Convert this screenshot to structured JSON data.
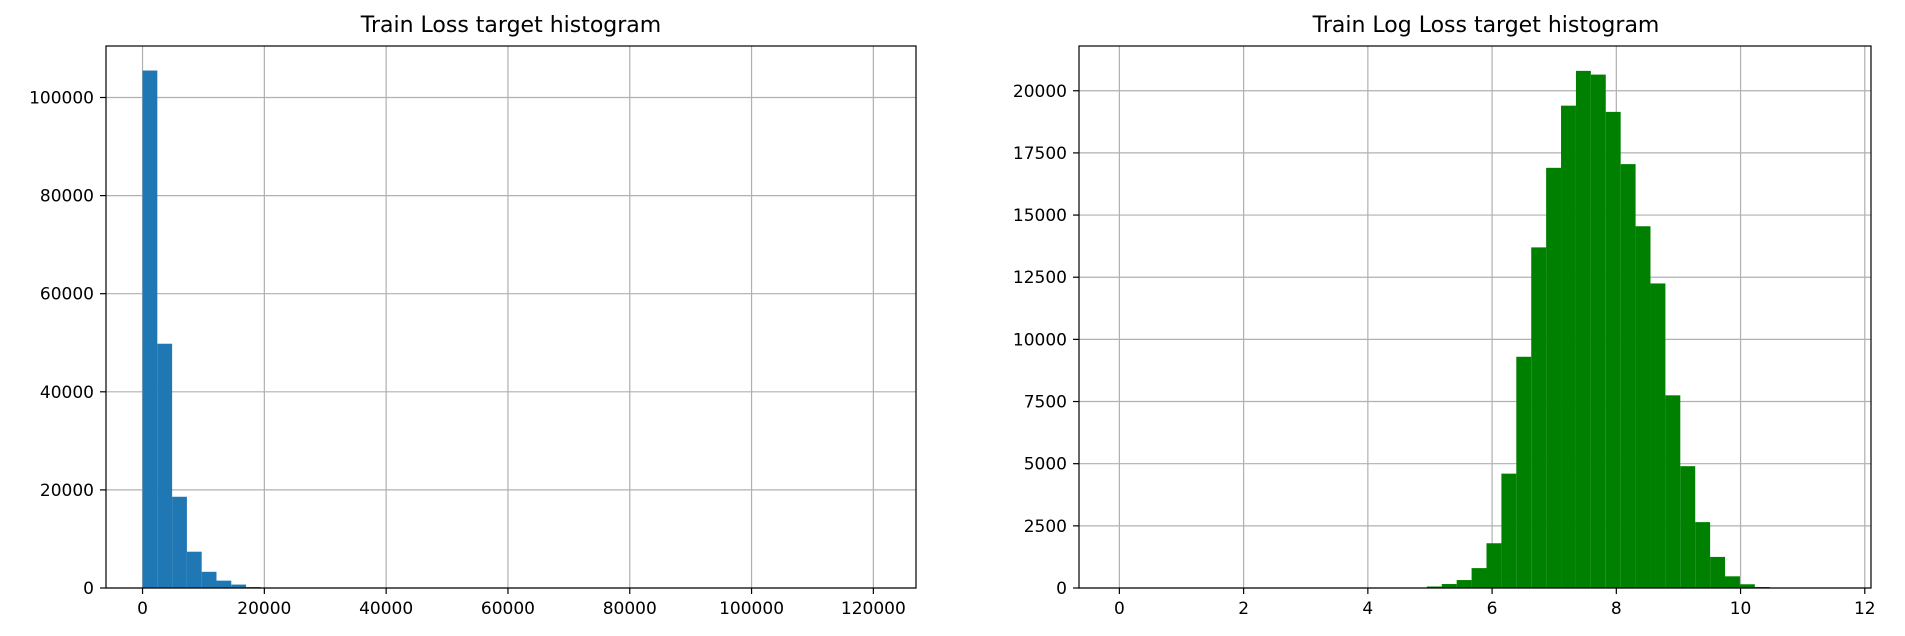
{
  "chart_data": [
    {
      "type": "bar",
      "title": "Train Loss target histogram",
      "xlabel": "",
      "ylabel": "",
      "grid": true,
      "color": "#1f77b4",
      "xlim": [
        -6000,
        127000
      ],
      "ylim": [
        0,
        110500
      ],
      "xticks": [
        0,
        20000,
        40000,
        60000,
        80000,
        100000,
        120000
      ],
      "yticks": [
        0,
        20000,
        40000,
        60000,
        80000,
        100000
      ],
      "bin_edges": [
        0,
        2428,
        4856,
        7284,
        9712,
        12140,
        14568,
        16996,
        19424
      ],
      "values": [
        105500,
        49800,
        18600,
        7400,
        3300,
        1500,
        700,
        200
      ]
    },
    {
      "type": "bar",
      "title": "Train Log Loss target histogram",
      "xlabel": "",
      "ylabel": "",
      "grid": true,
      "color": "#008000",
      "xlim": [
        -0.65,
        12.1
      ],
      "ylim": [
        0,
        21800
      ],
      "xticks": [
        0,
        2,
        4,
        6,
        8,
        10,
        12
      ],
      "yticks": [
        0,
        2500,
        5000,
        7500,
        10000,
        12500,
        15000,
        17500,
        20000
      ],
      "bin_edges": [
        4.95,
        5.19,
        5.43,
        5.67,
        5.91,
        6.15,
        6.39,
        6.63,
        6.87,
        7.11,
        7.35,
        7.59,
        7.83,
        8.07,
        8.31,
        8.55,
        8.79,
        9.03,
        9.27,
        9.51,
        9.75,
        9.99,
        10.23,
        10.47
      ],
      "values": [
        60,
        160,
        320,
        800,
        1800,
        4600,
        9300,
        13700,
        16900,
        19400,
        20800,
        20650,
        19150,
        17050,
        14550,
        12250,
        7750,
        4900,
        2650,
        1250,
        470,
        150,
        40
      ]
    }
  ]
}
